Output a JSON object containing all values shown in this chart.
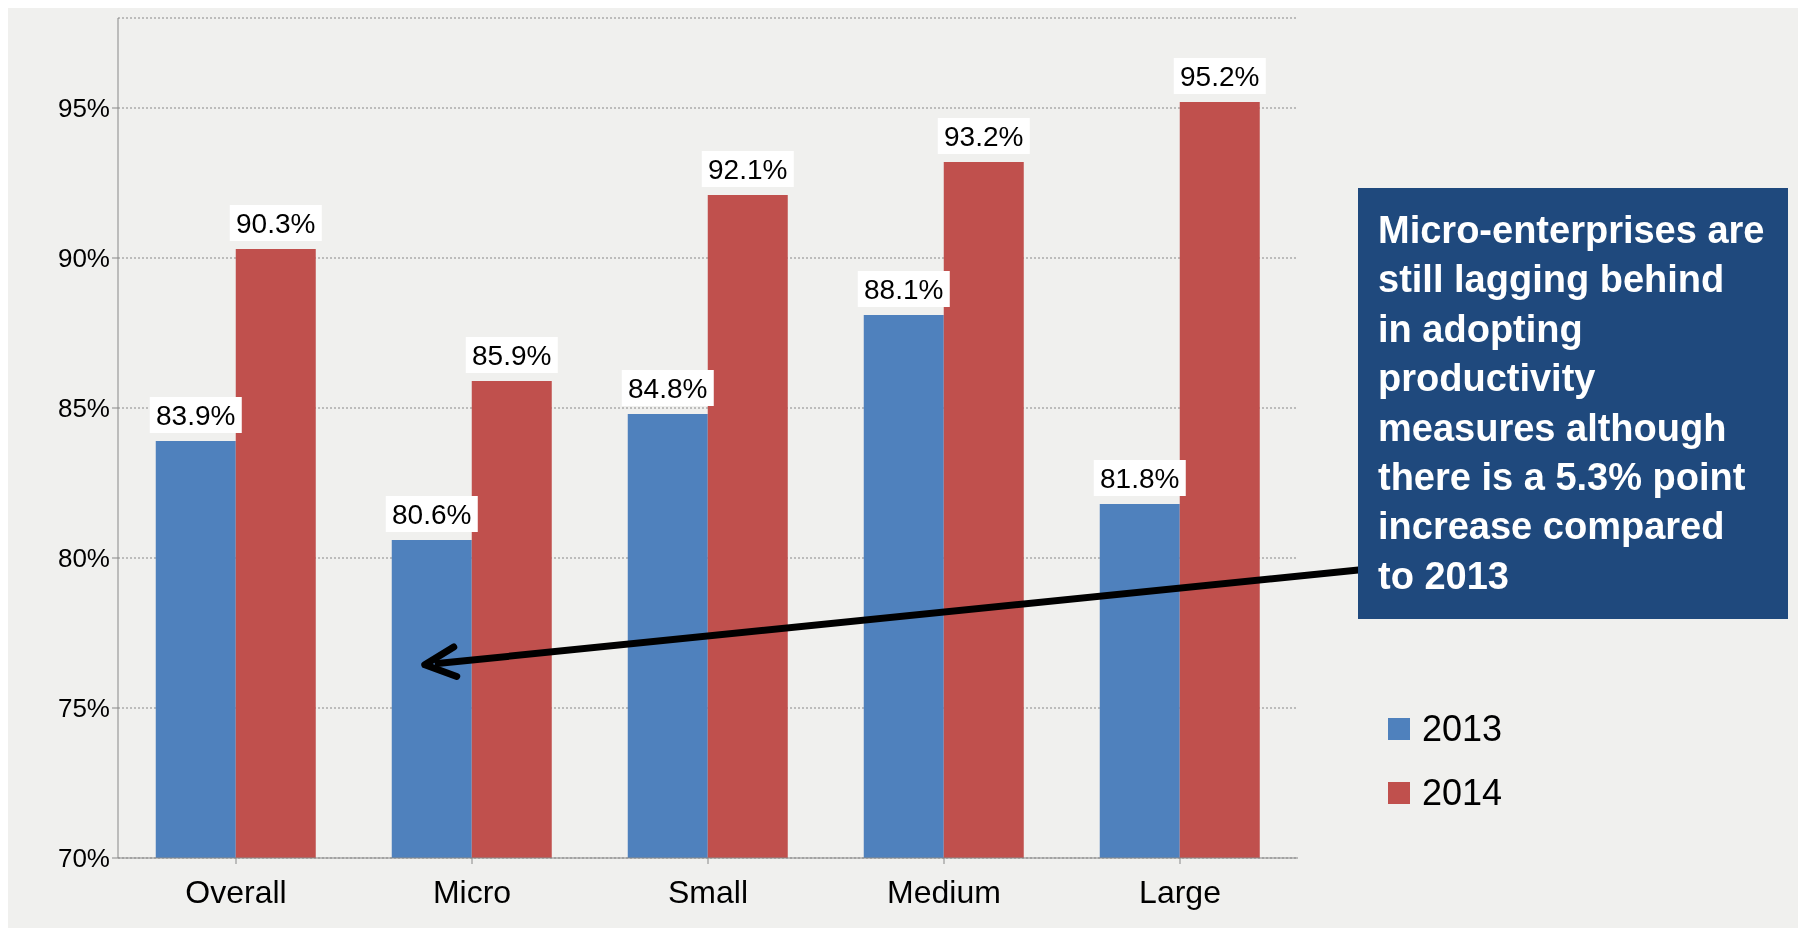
{
  "chart_data": {
    "type": "bar",
    "categories": [
      "Overall",
      "Micro",
      "Small",
      "Medium",
      "Large"
    ],
    "series": [
      {
        "name": "2013",
        "color": "#4f81bd",
        "values": [
          83.9,
          80.6,
          84.8,
          88.1,
          81.8
        ],
        "value_labels": [
          "83.9%",
          "80.6%",
          "84.8%",
          "88.1%",
          "81.8%"
        ]
      },
      {
        "name": "2014",
        "color": "#c0504d",
        "values": [
          90.3,
          85.9,
          92.1,
          93.2,
          95.2
        ],
        "value_labels": [
          "90.3%",
          "85.9%",
          "92.1%",
          "93.2%",
          "95.2%"
        ]
      }
    ],
    "ylim": [
      70,
      98
    ],
    "yticks": [
      {
        "value": 70,
        "label": "70%"
      },
      {
        "value": 75,
        "label": "75%"
      },
      {
        "value": 80,
        "label": "80%"
      },
      {
        "value": 85,
        "label": "85%"
      },
      {
        "value": 90,
        "label": "90%"
      },
      {
        "value": 95,
        "label": "95%"
      }
    ],
    "grid": "y",
    "legend": "bottom right",
    "annotations": [
      {
        "text": "Micro-enterprises are still lagging behind in adopting productivity measures although there is a 5.3% point increase compared to 2013"
      }
    ]
  }
}
